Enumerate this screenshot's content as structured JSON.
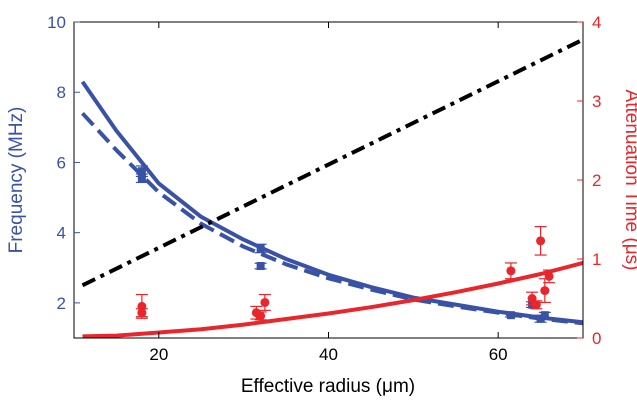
{
  "chart_data": {
    "type": "line",
    "xlabel": "Effective radius (μm)",
    "ylabel_left": "Frequency (MHz)",
    "ylabel_right": "Attenuation Time (μs)",
    "xlim": [
      10,
      70
    ],
    "ylim_left": [
      1,
      10
    ],
    "ylim_right": [
      0,
      4
    ],
    "xticks": [
      20,
      40,
      60
    ],
    "yticks_left": [
      2,
      4,
      6,
      8,
      10
    ],
    "yticks_right": [
      0,
      1,
      2,
      3,
      4
    ],
    "grid": false,
    "colors": {
      "frequency": "#3a52a6",
      "attenuation": "#e8262b",
      "dashdot": "#000000",
      "left_axis": "#3a52a6",
      "right_axis": "#e8262b"
    },
    "series": [
      {
        "axis": "left",
        "kind": "line",
        "style": "solid",
        "color_key": "frequency",
        "x": [
          11,
          15,
          20,
          25,
          30,
          35,
          40,
          45,
          50,
          55,
          60,
          65,
          70
        ],
        "y": [
          8.3,
          6.9,
          5.4,
          4.45,
          3.8,
          3.25,
          2.8,
          2.45,
          2.15,
          1.95,
          1.75,
          1.58,
          1.45
        ]
      },
      {
        "axis": "left",
        "kind": "line",
        "style": "dashed",
        "color_key": "frequency",
        "x": [
          11,
          15,
          20,
          25,
          30,
          35,
          40,
          45,
          50,
          55,
          60,
          65,
          70
        ],
        "y": [
          7.4,
          6.35,
          5.15,
          4.25,
          3.6,
          3.1,
          2.7,
          2.38,
          2.1,
          1.9,
          1.72,
          1.55,
          1.42
        ]
      },
      {
        "axis": "left",
        "kind": "line",
        "style": "dashdot",
        "color_key": "dashdot",
        "x": [
          11,
          70
        ],
        "y": [
          2.5,
          9.5
        ]
      },
      {
        "axis": "right",
        "kind": "line",
        "style": "solid",
        "color_key": "attenuation",
        "x": [
          11,
          15,
          20,
          25,
          30,
          35,
          40,
          45,
          50,
          55,
          60,
          65,
          70
        ],
        "y": [
          0.02,
          0.03,
          0.07,
          0.11,
          0.17,
          0.24,
          0.31,
          0.39,
          0.48,
          0.58,
          0.69,
          0.81,
          0.95
        ]
      },
      {
        "axis": "left",
        "kind": "squares",
        "color_key": "frequency",
        "x": [
          18,
          18,
          32,
          32,
          61.5,
          64,
          65,
          65.5
        ],
        "y": [
          5.75,
          5.55,
          3.55,
          3.05,
          1.65,
          1.95,
          1.55,
          1.65
        ],
        "err": [
          0.15,
          0.12,
          0.12,
          0.08,
          0.05,
          0.08,
          0.1,
          0.08
        ]
      },
      {
        "axis": "right",
        "kind": "circles",
        "color_key": "attenuation",
        "x": [
          18,
          18,
          31.5,
          32,
          32.5,
          61.5,
          64,
          65,
          65.5,
          66,
          64.5
        ],
        "y": [
          0.4,
          0.32,
          0.32,
          0.28,
          0.45,
          0.85,
          0.5,
          1.23,
          0.6,
          0.78,
          0.42
        ],
        "err": [
          0.15,
          0.05,
          0.08,
          0.05,
          0.1,
          0.1,
          0.08,
          0.18,
          0.15,
          0.08,
          0.05
        ]
      }
    ]
  }
}
